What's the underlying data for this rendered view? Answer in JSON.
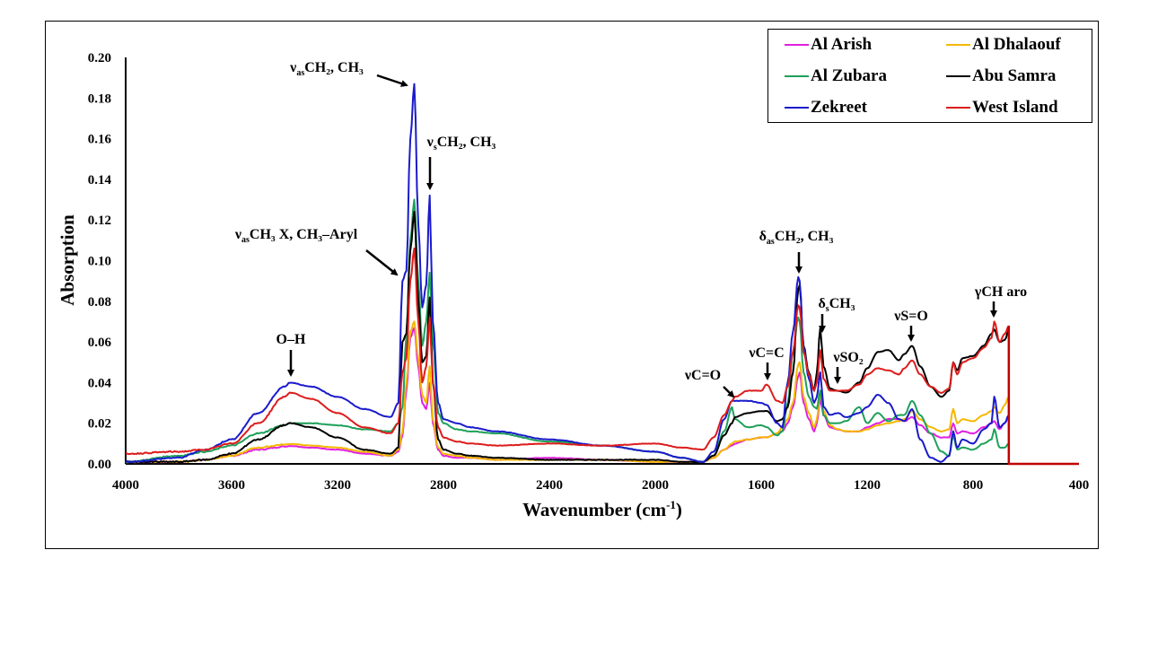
{
  "chart_data": {
    "type": "line",
    "title": "",
    "xlabel": "Wavenumber (cm",
    "xlabel_sup": "-1",
    "xlabel_end": ")",
    "ylabel": "Absorption",
    "xlim": [
      4000,
      400
    ],
    "ylim": [
      0,
      0.2
    ],
    "x_ticks": [
      "4000",
      "3600",
      "3200",
      "2800",
      "2400",
      "2000",
      "1600",
      "1200",
      "800",
      "400"
    ],
    "y_ticks": [
      "0.00",
      "0.02",
      "0.04",
      "0.06",
      "0.08",
      "0.10",
      "0.12",
      "0.14",
      "0.16",
      "0.18",
      "0.20"
    ],
    "grid": false,
    "legend_position": "top-right",
    "x": [
      4000,
      3800,
      3700,
      3600,
      3500,
      3400,
      3380,
      3300,
      3200,
      3100,
      3000,
      2970,
      2955,
      2940,
      2925,
      2910,
      2895,
      2880,
      2865,
      2852,
      2840,
      2820,
      2800,
      2750,
      2700,
      2600,
      2400,
      2200,
      2000,
      1900,
      1820,
      1780,
      1740,
      1710,
      1700,
      1650,
      1600,
      1580,
      1540,
      1520,
      1500,
      1480,
      1460,
      1455,
      1440,
      1420,
      1400,
      1390,
      1377,
      1365,
      1340,
      1310,
      1280,
      1230,
      1200,
      1160,
      1120,
      1080,
      1060,
      1030,
      1000,
      960,
      920,
      890,
      875,
      860,
      840,
      800,
      760,
      730,
      720,
      700,
      680,
      665
    ],
    "series": [
      {
        "name": "Al Arish",
        "color": "#E020E0",
        "values": [
          0.001,
          0.001,
          0.002,
          0.004,
          0.007,
          0.0085,
          0.0088,
          0.008,
          0.007,
          0.005,
          0.004,
          0.006,
          0.014,
          0.036,
          0.062,
          0.067,
          0.048,
          0.03,
          0.027,
          0.04,
          0.02,
          0.007,
          0.004,
          0.003,
          0.003,
          0.002,
          0.003,
          0.002,
          0.001,
          0.001,
          0.001,
          0.003,
          0.007,
          0.009,
          0.01,
          0.012,
          0.013,
          0.013,
          0.015,
          0.016,
          0.02,
          0.028,
          0.043,
          0.045,
          0.03,
          0.022,
          0.016,
          0.02,
          0.032,
          0.024,
          0.018,
          0.017,
          0.016,
          0.016,
          0.018,
          0.02,
          0.022,
          0.022,
          0.021,
          0.023,
          0.019,
          0.015,
          0.013,
          0.013,
          0.02,
          0.015,
          0.016,
          0.015,
          0.018,
          0.02,
          0.021,
          0.017,
          0.02,
          0.024
        ]
      },
      {
        "name": "Al Dhalaouf",
        "color": "#F5B800",
        "values": [
          0.001,
          0.001,
          0.002,
          0.004,
          0.008,
          0.0095,
          0.0098,
          0.009,
          0.008,
          0.006,
          0.004,
          0.007,
          0.016,
          0.04,
          0.065,
          0.07,
          0.052,
          0.034,
          0.03,
          0.048,
          0.022,
          0.008,
          0.005,
          0.004,
          0.003,
          0.002,
          0.002,
          0.002,
          0.001,
          0.001,
          0.001,
          0.003,
          0.007,
          0.01,
          0.011,
          0.012,
          0.013,
          0.013,
          0.015,
          0.018,
          0.022,
          0.03,
          0.049,
          0.05,
          0.033,
          0.025,
          0.018,
          0.022,
          0.035,
          0.026,
          0.019,
          0.017,
          0.016,
          0.016,
          0.017,
          0.019,
          0.02,
          0.021,
          0.022,
          0.026,
          0.022,
          0.018,
          0.016,
          0.017,
          0.027,
          0.02,
          0.022,
          0.021,
          0.024,
          0.026,
          0.028,
          0.025,
          0.029,
          0.033
        ]
      },
      {
        "name": "Al Zubara",
        "color": "#1FA05A",
        "values": [
          0.001,
          0.004,
          0.006,
          0.009,
          0.015,
          0.019,
          0.02,
          0.02,
          0.019,
          0.017,
          0.016,
          0.02,
          0.028,
          0.063,
          0.11,
          0.13,
          0.09,
          0.058,
          0.07,
          0.094,
          0.06,
          0.025,
          0.02,
          0.017,
          0.016,
          0.015,
          0.011,
          0.009,
          0.006,
          0.003,
          0.001,
          0.004,
          0.016,
          0.028,
          0.022,
          0.018,
          0.019,
          0.018,
          0.014,
          0.016,
          0.03,
          0.055,
          0.072,
          0.07,
          0.045,
          0.033,
          0.028,
          0.027,
          0.036,
          0.024,
          0.02,
          0.02,
          0.021,
          0.028,
          0.02,
          0.025,
          0.021,
          0.024,
          0.024,
          0.031,
          0.024,
          0.015,
          0.006,
          0.004,
          0.014,
          0.007,
          0.008,
          0.007,
          0.01,
          0.012,
          0.017,
          0.008,
          0.008,
          0.01
        ]
      },
      {
        "name": "Abu Samra",
        "color": "#000000",
        "values": [
          0.001,
          0.001,
          0.002,
          0.005,
          0.012,
          0.019,
          0.02,
          0.018,
          0.013,
          0.007,
          0.005,
          0.008,
          0.06,
          0.064,
          0.105,
          0.124,
          0.08,
          0.05,
          0.053,
          0.082,
          0.04,
          0.012,
          0.007,
          0.005,
          0.004,
          0.003,
          0.002,
          0.002,
          0.002,
          0.001,
          0.001,
          0.004,
          0.014,
          0.02,
          0.023,
          0.025,
          0.026,
          0.026,
          0.021,
          0.022,
          0.028,
          0.045,
          0.086,
          0.088,
          0.058,
          0.045,
          0.036,
          0.045,
          0.067,
          0.048,
          0.037,
          0.036,
          0.035,
          0.04,
          0.047,
          0.055,
          0.056,
          0.051,
          0.054,
          0.058,
          0.048,
          0.038,
          0.033,
          0.036,
          0.05,
          0.046,
          0.052,
          0.053,
          0.058,
          0.064,
          0.066,
          0.06,
          0.061,
          0.066
        ]
      },
      {
        "name": "Zekreet",
        "color": "#1A1ACC",
        "values": [
          0.001,
          0.003,
          0.007,
          0.012,
          0.025,
          0.038,
          0.04,
          0.038,
          0.033,
          0.027,
          0.023,
          0.03,
          0.09,
          0.095,
          0.16,
          0.187,
          0.118,
          0.077,
          0.088,
          0.132,
          0.07,
          0.03,
          0.022,
          0.02,
          0.018,
          0.016,
          0.012,
          0.009,
          0.006,
          0.003,
          0.001,
          0.006,
          0.022,
          0.031,
          0.031,
          0.031,
          0.03,
          0.029,
          0.02,
          0.018,
          0.04,
          0.065,
          0.092,
          0.09,
          0.057,
          0.042,
          0.03,
          0.033,
          0.045,
          0.028,
          0.024,
          0.025,
          0.023,
          0.025,
          0.028,
          0.034,
          0.03,
          0.022,
          0.021,
          0.027,
          0.012,
          0.003,
          0.001,
          0.004,
          0.016,
          0.008,
          0.012,
          0.01,
          0.017,
          0.02,
          0.033,
          0.018,
          0.02,
          0.024
        ]
      },
      {
        "name": "West Island",
        "color": "#DD1C1C",
        "values": [
          0.005,
          0.006,
          0.007,
          0.01,
          0.02,
          0.033,
          0.035,
          0.032,
          0.025,
          0.018,
          0.015,
          0.02,
          0.045,
          0.052,
          0.09,
          0.106,
          0.07,
          0.04,
          0.048,
          0.072,
          0.04,
          0.018,
          0.013,
          0.011,
          0.01,
          0.009,
          0.01,
          0.009,
          0.01,
          0.008,
          0.007,
          0.013,
          0.024,
          0.031,
          0.033,
          0.036,
          0.036,
          0.039,
          0.031,
          0.03,
          0.038,
          0.055,
          0.078,
          0.077,
          0.055,
          0.044,
          0.036,
          0.04,
          0.056,
          0.042,
          0.036,
          0.036,
          0.036,
          0.039,
          0.044,
          0.047,
          0.046,
          0.044,
          0.047,
          0.051,
          0.044,
          0.038,
          0.035,
          0.037,
          0.05,
          0.044,
          0.05,
          0.052,
          0.057,
          0.062,
          0.07,
          0.06,
          0.064,
          0.068
        ]
      }
    ],
    "annotations": [
      {
        "text": "O–H",
        "x": 3380
      },
      {
        "text_pre": "ν",
        "sub": "as",
        "text_post": "CH₃ X, CH₃–Aryl",
        "x": 2955
      },
      {
        "text_pre": "ν",
        "sub": "as",
        "text_post": "CH₂, CH₃",
        "x": 2925
      },
      {
        "text_pre": "ν",
        "sub": "s",
        "text_post": "CH₂, CH₃",
        "x": 2852
      },
      {
        "text": "νC=O",
        "x": 1710
      },
      {
        "text": "νC=C",
        "x": 1600
      },
      {
        "text_pre": "δ",
        "sub": "as",
        "text_post": "CH₂, CH₃",
        "x": 1460
      },
      {
        "text_pre": "δ",
        "sub": "s",
        "text_post": "CH₃",
        "x": 1377
      },
      {
        "text": "νSO₂",
        "x": 1310
      },
      {
        "text": "νS=O",
        "x": 1030
      },
      {
        "text": "γCH aro",
        "x": 720
      }
    ],
    "cutoff_line": {
      "x": 665,
      "color": "#C00000"
    }
  }
}
